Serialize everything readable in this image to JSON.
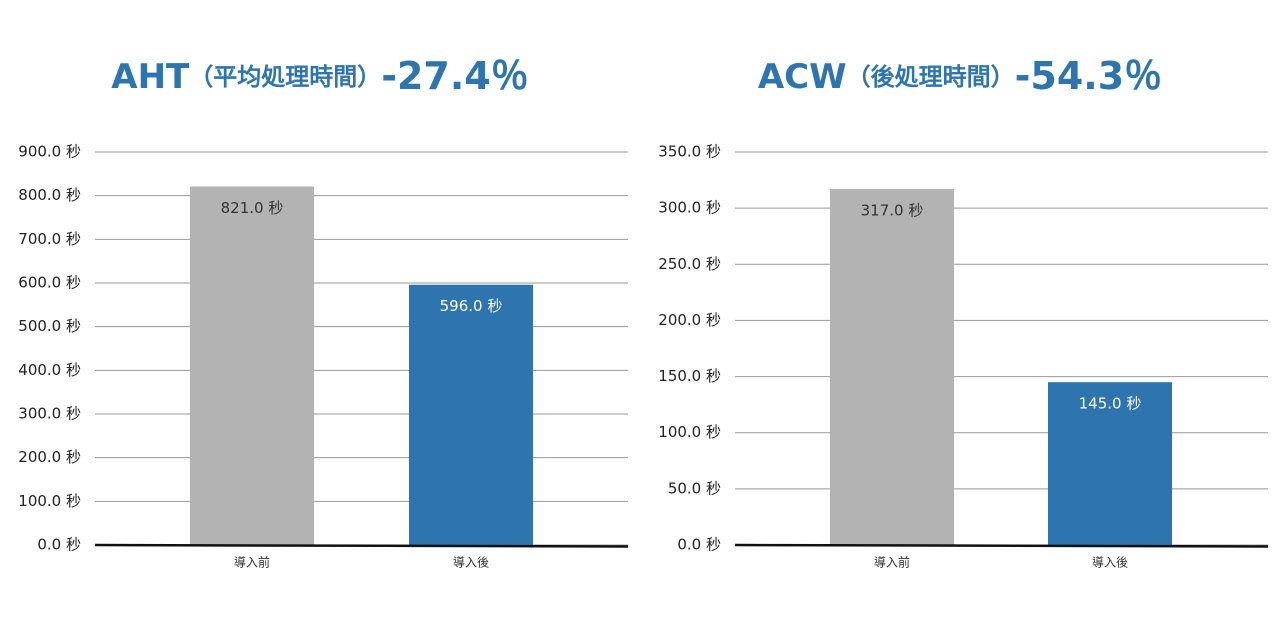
{
  "chart_data": [
    {
      "type": "bar",
      "title": "AHT",
      "subtitle": "（平均処理時間）",
      "annotation": "-27.4％",
      "categories": [
        "導入前",
        "導入後"
      ],
      "values": [
        821,
        596
      ],
      "value_labels": [
        "821.0 秒",
        "596.0 秒"
      ],
      "colors": [
        "#b3b3b3",
        "#2e75b0"
      ],
      "value_label_colors": [
        "#333333",
        "#ffffff"
      ],
      "ylim": [
        0,
        900
      ],
      "yticks": [
        {
          "value": 0,
          "label": "0.0 秒"
        },
        {
          "value": 100,
          "label": "100.0 秒"
        },
        {
          "value": 200,
          "label": "200.0 秒"
        },
        {
          "value": 300,
          "label": "300.0 秒"
        },
        {
          "value": 400,
          "label": "400.0 秒"
        },
        {
          "value": 500,
          "label": "500.0 秒"
        },
        {
          "value": 600,
          "label": "600.0 秒"
        },
        {
          "value": 700,
          "label": "700.0 秒"
        },
        {
          "value": 800,
          "label": "800.0 秒"
        },
        {
          "value": 900,
          "label": "900.0 秒"
        }
      ],
      "grid": true
    },
    {
      "type": "bar",
      "title": "ACW",
      "subtitle": "（後処理時間）",
      "annotation": "-54.3％",
      "categories": [
        "導入前",
        "導入後"
      ],
      "values": [
        317,
        145
      ],
      "value_labels": [
        "317.0 秒",
        "145.0 秒"
      ],
      "colors": [
        "#b3b3b3",
        "#2e75b0"
      ],
      "value_label_colors": [
        "#333333",
        "#ffffff"
      ],
      "ylim": [
        0,
        350
      ],
      "yticks": [
        {
          "value": 0,
          "label": "0.0 秒"
        },
        {
          "value": 50,
          "label": "50.0 秒"
        },
        {
          "value": 100,
          "label": "100.0 秒"
        },
        {
          "value": 150,
          "label": "150.0 秒"
        },
        {
          "value": 200,
          "label": "200.0 秒"
        },
        {
          "value": 250,
          "label": "250.0 秒"
        },
        {
          "value": 300,
          "label": "300.0 秒"
        },
        {
          "value": 350,
          "label": "350.0 秒"
        }
      ],
      "grid": true
    }
  ]
}
